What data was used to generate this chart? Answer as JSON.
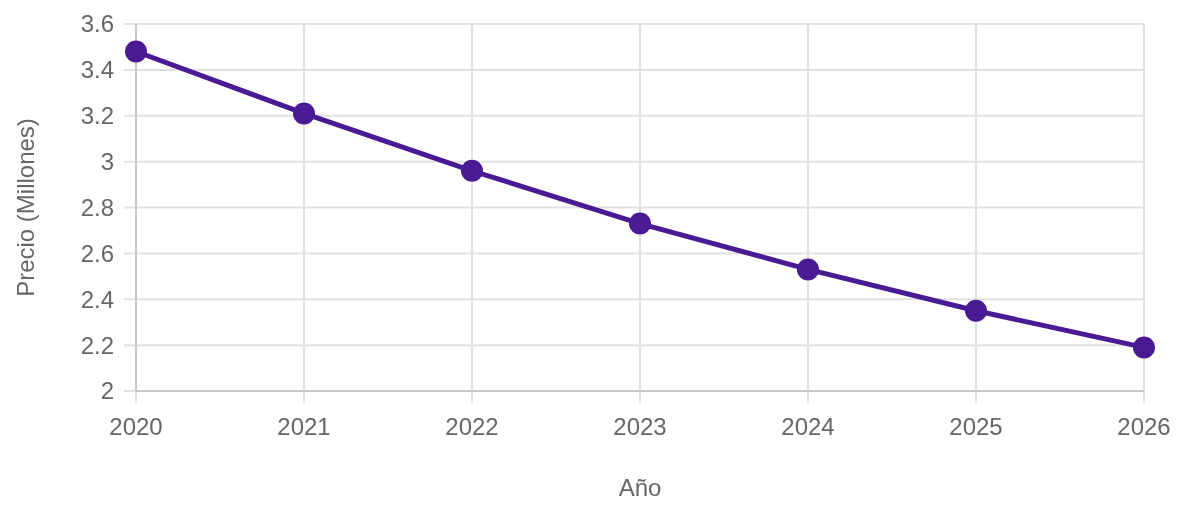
{
  "chart_data": {
    "type": "line",
    "xlabel": "Año",
    "ylabel": "Precio (Millones)",
    "categories": [
      "2020",
      "2021",
      "2022",
      "2023",
      "2024",
      "2025",
      "2026"
    ],
    "series": [
      {
        "color": "#4a1a94",
        "values": [
          3.48,
          3.21,
          2.96,
          2.73,
          2.53,
          2.35,
          2.19
        ]
      }
    ],
    "ylim": [
      2,
      3.6
    ],
    "yticks": [
      2,
      2.2,
      2.4,
      2.6,
      2.8,
      3,
      3.2,
      3.4,
      3.6
    ],
    "grid": true,
    "marker": "circle",
    "line_style": "solid"
  }
}
